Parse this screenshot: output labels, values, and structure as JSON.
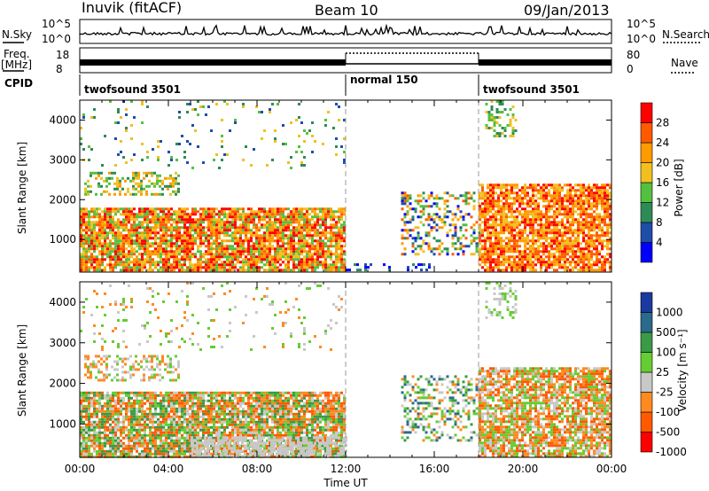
{
  "header": {
    "station": "Inuvik (fitACF)",
    "beam": "Beam 10",
    "date": "09/Jan/2013"
  },
  "strips": {
    "nsky_label": "N.Sky",
    "nsearch_label": "N.Search",
    "freq_label_1": "Freq.",
    "freq_label_2": "[MHz]",
    "nave_label": "Nave",
    "cpid_label": "CPID",
    "nsky_ticks": [
      "10^5",
      "10^0"
    ],
    "nsearch_ticks": [
      "10^5",
      "10^0"
    ],
    "freq_ticks": [
      "18",
      "8"
    ],
    "nave_ticks": [
      "80",
      "0"
    ]
  },
  "cpid_segments": [
    {
      "label": "twofsound 3501",
      "start_hour": 0
    },
    {
      "label": "normal 150",
      "start_hour": 12
    },
    {
      "label": "twofsound 3501",
      "start_hour": 18
    }
  ],
  "colors": {
    "power": [
      "#0000ff",
      "#1e4ea8",
      "#2e8b57",
      "#54c040",
      "#f0c020",
      "#ff9a00",
      "#ff5a00",
      "#ff0000"
    ],
    "velocity": [
      "#ff0000",
      "#ff5a00",
      "#ff8a20",
      "#c8c8c8",
      "#66cc33",
      "#3a9a46",
      "#2a6a8a",
      "#1a3aa0"
    ],
    "ground_scatter": "#c0c0c0"
  },
  "chart_data": [
    {
      "type": "heatmap",
      "panel": "power",
      "xlabel": "",
      "ylabel": "Slant Range [km]",
      "xlim_hours": [
        0,
        24
      ],
      "ylim": [
        180,
        4500
      ],
      "yticks": [
        1000,
        2000,
        3000,
        4000
      ],
      "colorbar_label": "Power [dB]",
      "colorbar_ticks": [
        "4",
        "8",
        "12",
        "16",
        "20",
        "24",
        "28"
      ],
      "scatter_regions": [
        {
          "t0": 0.0,
          "t1": 12.0,
          "r0": 200,
          "r1": 1800,
          "density": 0.85,
          "cmin": 3,
          "cmax": 7
        },
        {
          "t0": 0.2,
          "t1": 4.5,
          "r0": 2100,
          "r1": 2700,
          "density": 0.4,
          "cmin": 2,
          "cmax": 5
        },
        {
          "t0": 0.0,
          "t1": 12.0,
          "r0": 2800,
          "r1": 4500,
          "density": 0.06,
          "cmin": 1,
          "cmax": 4
        },
        {
          "t0": 12.0,
          "t1": 16.0,
          "r0": 200,
          "r1": 400,
          "density": 0.25,
          "cmin": 0,
          "cmax": 2
        },
        {
          "t0": 14.5,
          "t1": 18.0,
          "r0": 600,
          "r1": 2200,
          "density": 0.35,
          "cmin": 0,
          "cmax": 6
        },
        {
          "t0": 18.0,
          "t1": 24.0,
          "r0": 200,
          "r1": 2400,
          "density": 0.8,
          "cmin": 4,
          "cmax": 7
        },
        {
          "t0": 18.3,
          "t1": 19.7,
          "r0": 3600,
          "r1": 4500,
          "density": 0.35,
          "cmin": 2,
          "cmax": 4
        }
      ]
    },
    {
      "type": "heatmap",
      "panel": "velocity",
      "xlabel": "Time UT",
      "ylabel": "Slant Range [km]",
      "xlim_hours": [
        0,
        24
      ],
      "ylim": [
        180,
        4500
      ],
      "yticks": [
        1000,
        2000,
        3000,
        4000
      ],
      "xticks": [
        "00:00",
        "04:00",
        "08:00",
        "12:00",
        "16:00",
        "20:00",
        "00:00"
      ],
      "colorbar_label": "Velocity [m s⁻¹]",
      "colorbar_ticks": [
        "1000",
        "500",
        "100",
        "25",
        "-25",
        "-100",
        "-500",
        "-1000"
      ],
      "scatter_regions": [
        {
          "t0": 0.0,
          "t1": 12.0,
          "r0": 200,
          "r1": 1800,
          "density": 0.85,
          "cmin": 1,
          "cmax": 5
        },
        {
          "t0": 0.2,
          "t1": 4.5,
          "r0": 2100,
          "r1": 2700,
          "density": 0.4,
          "cmin": 2,
          "cmax": 4
        },
        {
          "t0": 5.0,
          "t1": 12.0,
          "r0": 200,
          "r1": 700,
          "density": 0.6,
          "cmin": 3,
          "cmax": 3
        },
        {
          "t0": 0.0,
          "t1": 12.0,
          "r0": 2800,
          "r1": 4500,
          "density": 0.06,
          "cmin": 2,
          "cmax": 4
        },
        {
          "t0": 14.5,
          "t1": 18.0,
          "r0": 600,
          "r1": 2200,
          "density": 0.35,
          "cmin": 2,
          "cmax": 6
        },
        {
          "t0": 18.0,
          "t1": 24.0,
          "r0": 200,
          "r1": 2400,
          "density": 0.8,
          "cmin": 1,
          "cmax": 4
        },
        {
          "t0": 18.3,
          "t1": 19.7,
          "r0": 3600,
          "r1": 4500,
          "density": 0.35,
          "cmin": 3,
          "cmax": 4
        }
      ]
    }
  ]
}
